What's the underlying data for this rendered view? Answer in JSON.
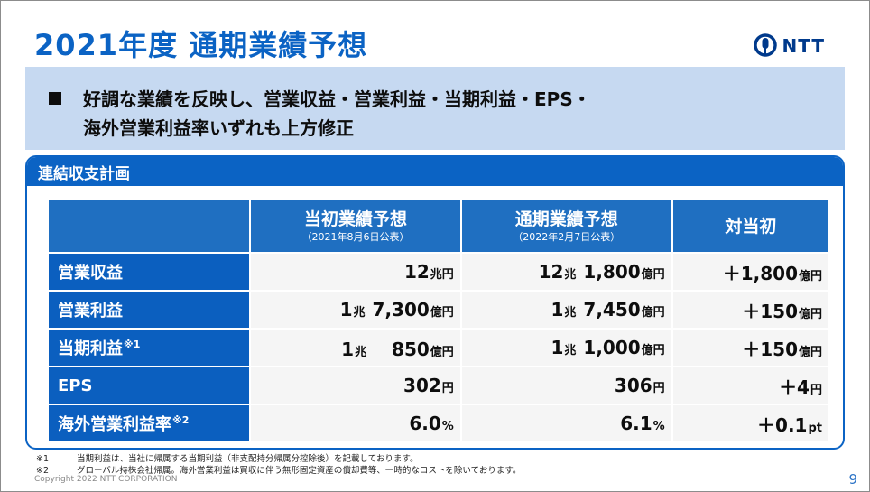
{
  "title": "2021年度 通期業績予想",
  "logo": {
    "icon": "ntt-logo-icon",
    "text": "NTT"
  },
  "summary": {
    "line1": "好調な業績を反映し、営業収益・営業利益・当期利益・EPS・",
    "line2": "海外営業利益率いずれも上方修正"
  },
  "panel": {
    "title": "連結収支計画",
    "columns": [
      {
        "main": "当初業績予想",
        "sub": "（2021年8月6日公表）"
      },
      {
        "main": "通期業績予想",
        "sub": "（2022年2月7日公表）"
      },
      {
        "main": "対当初",
        "sub": ""
      }
    ],
    "rows": [
      {
        "label": "営業収益",
        "note": "",
        "cells": [
          [
            [
              "12",
              "n"
            ],
            [
              "兆円",
              "u"
            ]
          ],
          [
            [
              "12",
              "n"
            ],
            [
              "兆",
              "u"
            ],
            [
              " 1,800",
              "n"
            ],
            [
              "億円",
              "u"
            ]
          ],
          [
            [
              "＋1,800",
              "n"
            ],
            [
              "億円",
              "u"
            ]
          ]
        ]
      },
      {
        "label": "営業利益",
        "note": "",
        "cells": [
          [
            [
              "1",
              "n"
            ],
            [
              "兆",
              "u"
            ],
            [
              " 7,300",
              "n"
            ],
            [
              "億円",
              "u"
            ]
          ],
          [
            [
              "1",
              "n"
            ],
            [
              "兆",
              "u"
            ],
            [
              " 7,450",
              "n"
            ],
            [
              "億円",
              "u"
            ]
          ],
          [
            [
              "＋150",
              "n"
            ],
            [
              "億円",
              "u"
            ]
          ]
        ]
      },
      {
        "label": "当期利益",
        "note": "※1",
        "cells": [
          [
            [
              "1",
              "n"
            ],
            [
              "兆",
              "u"
            ],
            [
              "　 850",
              "n"
            ],
            [
              "億円",
              "u"
            ]
          ],
          [
            [
              "1",
              "n"
            ],
            [
              "兆",
              "u"
            ],
            [
              " 1,000",
              "n"
            ],
            [
              "億円",
              "u"
            ]
          ],
          [
            [
              "＋150",
              "n"
            ],
            [
              "億円",
              "u"
            ]
          ]
        ]
      },
      {
        "label": "EPS",
        "note": "",
        "cells": [
          [
            [
              "302",
              "n"
            ],
            [
              "円",
              "u"
            ]
          ],
          [
            [
              "306",
              "n"
            ],
            [
              "円",
              "u"
            ]
          ],
          [
            [
              "＋4",
              "n"
            ],
            [
              "円",
              "u"
            ]
          ]
        ]
      },
      {
        "label": "海外営業利益率",
        "note": "※2",
        "cells": [
          [
            [
              "6.0",
              "n"
            ],
            [
              "%",
              "u"
            ]
          ],
          [
            [
              "6.1",
              "n"
            ],
            [
              "%",
              "u"
            ]
          ],
          [
            [
              "＋0.1",
              "n"
            ],
            [
              "pt",
              "u"
            ]
          ]
        ]
      }
    ]
  },
  "notes": [
    {
      "mark": "※1",
      "text": "当期利益は、当社に帰属する当期利益（非支配持分帰属分控除後）を記載しております。"
    },
    {
      "mark": "※2",
      "text": "グローバル持株会社帰属。海外営業利益は買収に伴う無形固定資産の償却費等、一時的なコストを除いております。"
    }
  ],
  "copyright": "Copyright 2022 NTT CORPORATION",
  "page_number": "9",
  "colors": {
    "title": "#0b63c4",
    "summary_bg": "#c6d9f1",
    "header_blue": "#1f6fc1",
    "row_label_blue": "#0b5fbf",
    "cell_bg": "#f5f5f5"
  }
}
